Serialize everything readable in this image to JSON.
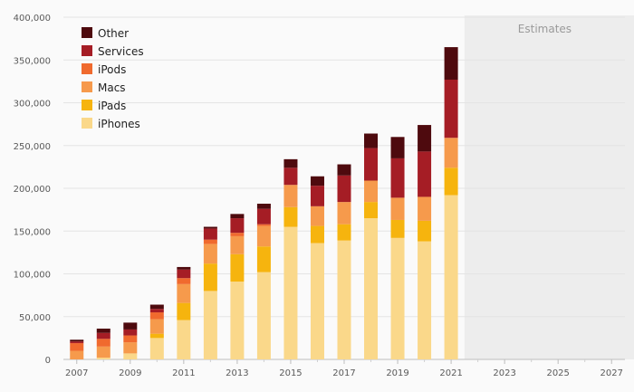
{
  "chart_data": {
    "type": "bar",
    "stacked": true,
    "categories": [
      "2007",
      "2008",
      "2009",
      "2010",
      "2011",
      "2012",
      "2013",
      "2014",
      "2015",
      "2016",
      "2017",
      "2018",
      "2019",
      "2020",
      "2021"
    ],
    "x_tick_labels": [
      "2007",
      "2009",
      "2011",
      "2013",
      "2015",
      "2017",
      "2019",
      "2021",
      "2023",
      "2025",
      "2027"
    ],
    "y_tick_labels": [
      "0",
      "50,000",
      "100,000",
      "150,000",
      "200,000",
      "250,000",
      "300,000",
      "350,000",
      "400,000"
    ],
    "ylim": [
      0,
      400000
    ],
    "xlim": [
      2006.5,
      2027.5
    ],
    "grid": true,
    "legend_position": "top-left",
    "estimates_region": {
      "label": "Estimates",
      "from_year": 2021.5
    },
    "series": [
      {
        "name": "iPhones",
        "color": "#fad88a",
        "values": [
          0,
          2000,
          7000,
          25000,
          46000,
          80000,
          91000,
          102000,
          155000,
          136000,
          139000,
          165000,
          142000,
          138000,
          192000
        ]
      },
      {
        "name": "iPads",
        "color": "#f6b40e",
        "values": [
          0,
          0,
          0,
          5000,
          20000,
          32000,
          32000,
          30000,
          23000,
          20000,
          19000,
          19000,
          21000,
          24000,
          32000
        ]
      },
      {
        "name": "Macs",
        "color": "#f69a4c",
        "values": [
          10000,
          13000,
          13000,
          17000,
          22000,
          23000,
          21000,
          24000,
          26000,
          23000,
          26000,
          25000,
          26000,
          28000,
          35000
        ]
      },
      {
        "name": "iPods",
        "color": "#f06a2e",
        "values": [
          9000,
          9000,
          8000,
          8000,
          7000,
          5000,
          4000,
          2000,
          0,
          0,
          0,
          0,
          0,
          0,
          0
        ]
      },
      {
        "name": "Services",
        "color": "#a51d25",
        "values": [
          2000,
          7000,
          7000,
          4000,
          10000,
          13000,
          17000,
          18000,
          20000,
          24000,
          31000,
          38000,
          46000,
          53000,
          68000
        ]
      },
      {
        "name": "Other",
        "color": "#4e0a0e",
        "values": [
          2000,
          5000,
          8000,
          5000,
          3000,
          2000,
          5000,
          6000,
          10000,
          11000,
          13000,
          17000,
          25000,
          31000,
          38000
        ]
      }
    ]
  }
}
